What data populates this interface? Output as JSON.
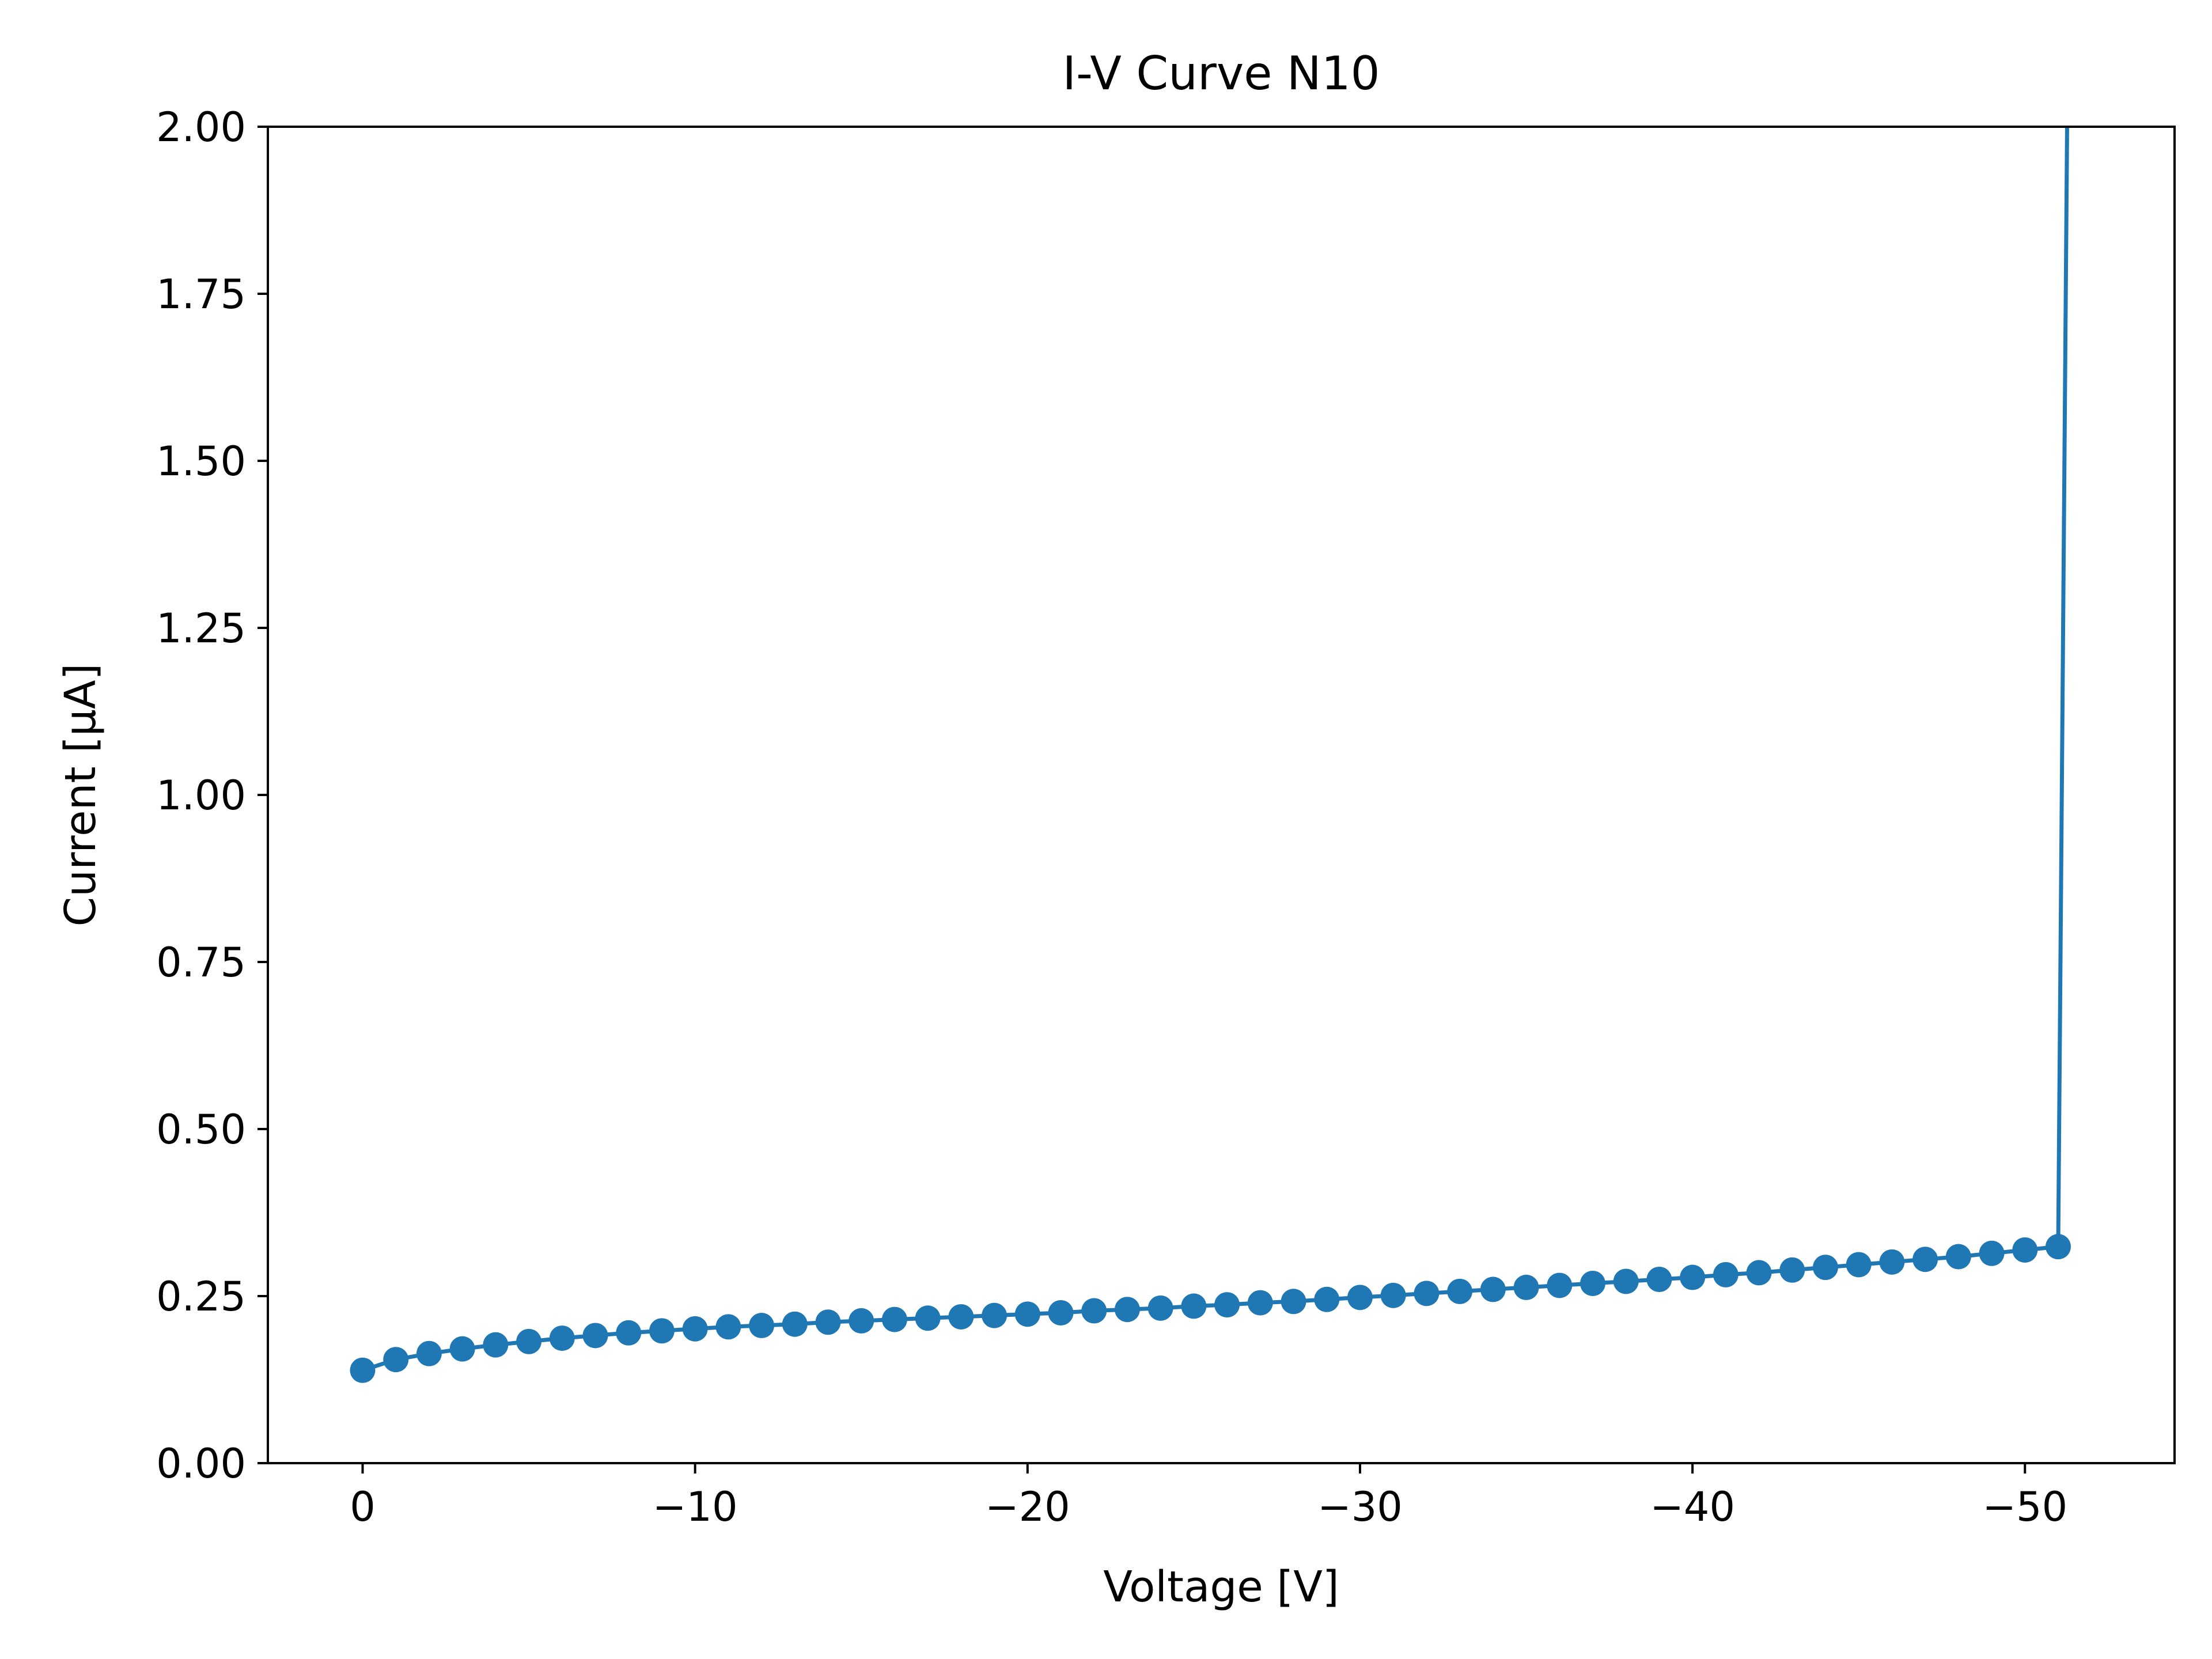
{
  "chart_data": {
    "type": "line",
    "title": "I-V Curve N10",
    "xlabel": "Voltage [V]",
    "ylabel": "Current [µA]",
    "xlim": [
      2.85,
      -54.5
    ],
    "ylim": [
      0,
      2.0
    ],
    "x_ticks": [
      0,
      -10,
      -20,
      -30,
      -40,
      -50
    ],
    "x_tick_labels": [
      "0",
      "−10",
      "−20",
      "−30",
      "−40",
      "−50"
    ],
    "y_ticks": [
      0,
      0.25,
      0.5,
      0.75,
      1.0,
      1.25,
      1.5,
      1.75,
      2.0
    ],
    "y_tick_labels": [
      "0.00",
      "0.25",
      "0.50",
      "0.75",
      "1.00",
      "1.25",
      "1.50",
      "1.75",
      "2.00"
    ],
    "grid": false,
    "legend": "none",
    "colors": {
      "series": "#1f77b4",
      "axes": "#000000"
    },
    "series": [
      {
        "marker": "circle",
        "x": [
          0,
          -1,
          -2,
          -3,
          -4,
          -5,
          -6,
          -7,
          -8,
          -9,
          -10,
          -11,
          -12,
          -13,
          -14,
          -15,
          -16,
          -17,
          -18,
          -19,
          -20,
          -21,
          -22,
          -23,
          -24,
          -25,
          -26,
          -27,
          -28,
          -29,
          -30,
          -31,
          -32,
          -33,
          -34,
          -35,
          -36,
          -37,
          -38,
          -39,
          -40,
          -41,
          -42,
          -43,
          -44,
          -45,
          -46,
          -47,
          -48,
          -49,
          -50,
          -51
        ],
        "y": [
          0.139,
          0.155,
          0.164,
          0.171,
          0.177,
          0.182,
          0.187,
          0.191,
          0.195,
          0.198,
          0.201,
          0.204,
          0.206,
          0.208,
          0.211,
          0.213,
          0.215,
          0.217,
          0.219,
          0.221,
          0.223,
          0.225,
          0.228,
          0.23,
          0.232,
          0.235,
          0.237,
          0.24,
          0.242,
          0.245,
          0.248,
          0.251,
          0.254,
          0.257,
          0.26,
          0.263,
          0.266,
          0.269,
          0.272,
          0.275,
          0.278,
          0.282,
          0.285,
          0.289,
          0.293,
          0.297,
          0.301,
          0.305,
          0.309,
          0.314,
          0.319,
          0.324
        ]
      }
    ],
    "breakdown_line": {
      "x": [
        -51,
        -51.3
      ],
      "y": [
        0.324,
        2.2
      ]
    }
  }
}
